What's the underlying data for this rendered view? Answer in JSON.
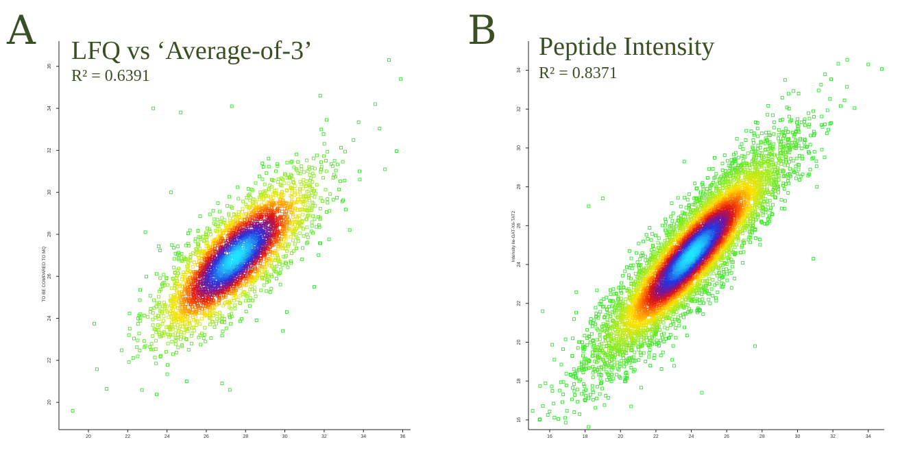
{
  "chart_data": [
    {
      "type": "scatter",
      "panel": "A",
      "title": "LFQ vs ‘Average-of-3’",
      "annotation": "R² = 0.6391",
      "r2": 0.6391,
      "xlabel": "",
      "ylabel": "TO BE COMPARED TO MQ",
      "xlim": [
        18.5,
        36.4
      ],
      "ylim": [
        18.7,
        37.2
      ],
      "xticks": [
        20,
        22,
        24,
        26,
        28,
        30,
        32,
        34,
        36
      ],
      "yticks": [
        20,
        22,
        24,
        26,
        28,
        30,
        32,
        34,
        36
      ],
      "density": {
        "center": [
          27.5,
          26.9
        ],
        "sd_x": 2.0,
        "sd_y": 1.9,
        "correlation": 0.8,
        "n_points": 3000,
        "color_scale": [
          "green",
          "yellow",
          "red",
          "blue",
          "cyan"
        ]
      },
      "outliers": [
        [
          19.2,
          19.6
        ],
        [
          35.3,
          36.3
        ],
        [
          35.9,
          35.4
        ],
        [
          31.8,
          34.6
        ],
        [
          34.6,
          34.2
        ],
        [
          23.3,
          34.0
        ],
        [
          24.7,
          33.8
        ],
        [
          27.3,
          34.1
        ],
        [
          35.1,
          31.1
        ],
        [
          33.8,
          31.0
        ],
        [
          22.9,
          28.1
        ],
        [
          33.3,
          28.2
        ],
        [
          24.2,
          30.0
        ],
        [
          31.5,
          25.5
        ],
        [
          30.1,
          24.3
        ],
        [
          29.9,
          23.4
        ],
        [
          26.8,
          20.9
        ],
        [
          27.2,
          20.6
        ],
        [
          25.0,
          21.0
        ]
      ]
    },
    {
      "type": "scatter",
      "panel": "B",
      "title": "Peptide Intensity",
      "annotation": "R² = 0.8371",
      "r2": 0.8371,
      "xlabel": "",
      "ylabel": "Intensity ile-GAT-X6-TAT2",
      "xlim": [
        14.8,
        34.9
      ],
      "ylim": [
        15.5,
        35.5
      ],
      "xticks": [
        16,
        18,
        20,
        22,
        24,
        26,
        28,
        30,
        32,
        34
      ],
      "yticks": [
        16,
        18,
        20,
        22,
        24,
        26,
        28,
        30,
        32,
        34
      ],
      "density": {
        "center": [
          24.0,
          24.5
        ],
        "sd_x": 2.7,
        "sd_y": 2.8,
        "correlation": 0.9,
        "n_points": 6000,
        "color_scale": [
          "green",
          "yellow",
          "red",
          "blue",
          "cyan"
        ]
      },
      "outliers": [
        [
          15.6,
          21.6
        ],
        [
          17.2,
          18.3
        ],
        [
          18.3,
          17.3
        ],
        [
          20.6,
          16.7
        ],
        [
          24.6,
          17.4
        ],
        [
          34.0,
          34.3
        ],
        [
          29.3,
          33.5
        ],
        [
          30.9,
          24.3
        ],
        [
          27.6,
          19.8
        ],
        [
          18.2,
          27.0
        ],
        [
          19.0,
          27.4
        ],
        [
          23.6,
          29.3
        ]
      ]
    }
  ]
}
